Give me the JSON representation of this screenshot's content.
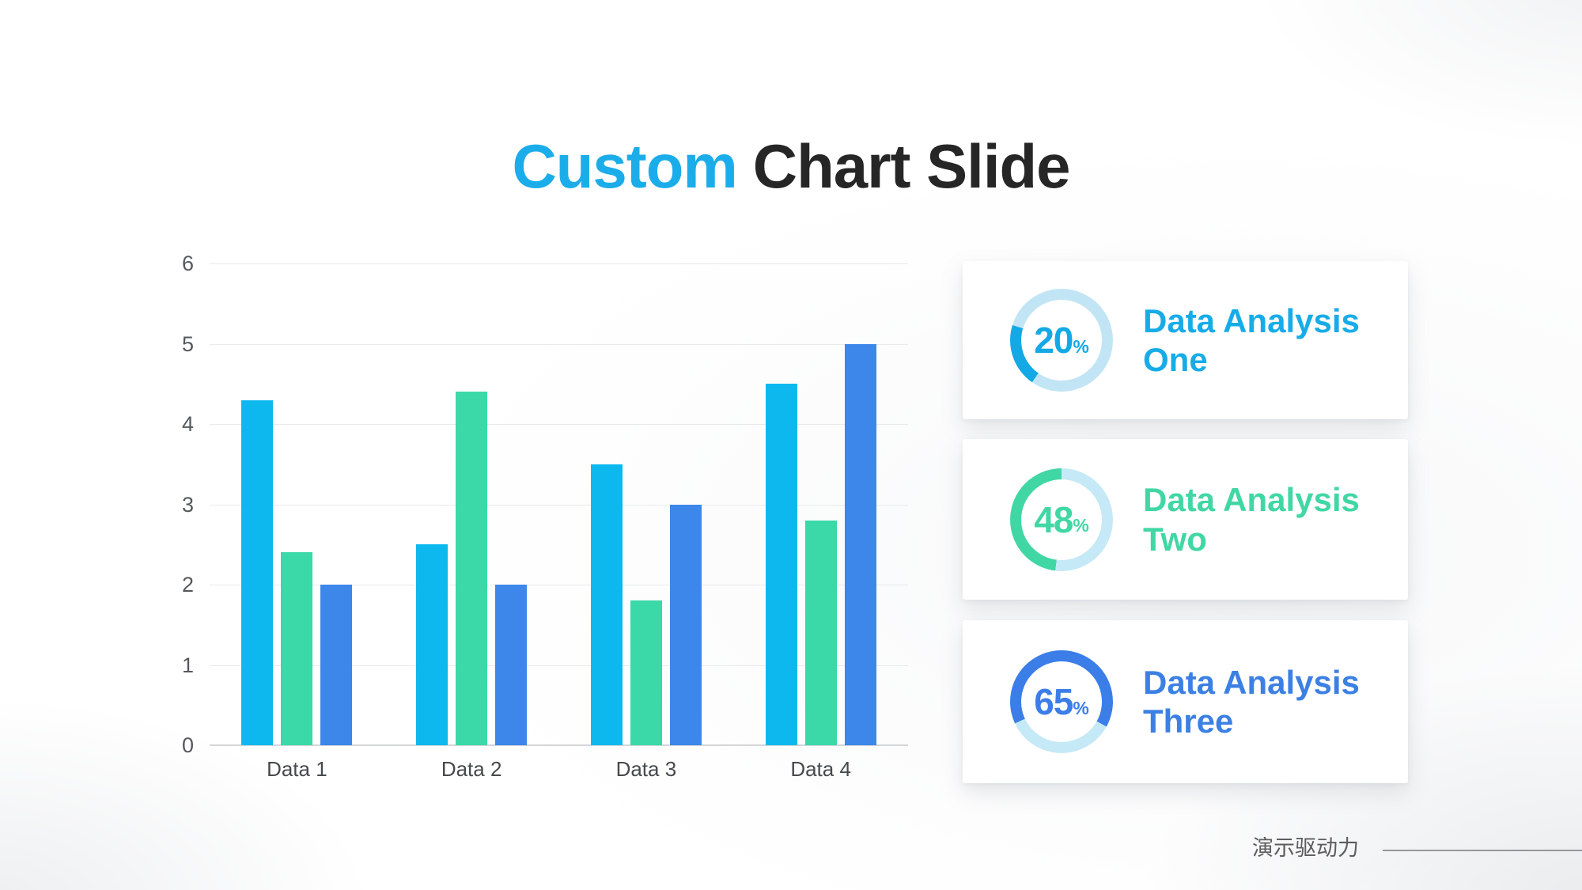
{
  "title": {
    "accent": "Custom",
    "rest": "Chart Slide"
  },
  "chart_data": [
    {
      "type": "bar",
      "title": "",
      "xlabel": "",
      "ylabel": "",
      "categories": [
        "Data 1",
        "Data 2",
        "Data 3",
        "Data 4"
      ],
      "series": [
        {
          "name": "series-cyan",
          "color": "#0db8ef",
          "values": [
            4.3,
            2.5,
            3.5,
            4.5
          ]
        },
        {
          "name": "series-green",
          "color": "#3bd8a8",
          "values": [
            2.4,
            4.4,
            1.8,
            2.8
          ]
        },
        {
          "name": "series-blue",
          "color": "#3d87ea",
          "values": [
            2.0,
            2.0,
            3.0,
            5.0
          ]
        }
      ],
      "ylim": [
        0,
        6
      ],
      "yticks": [
        0,
        1,
        2,
        3,
        4,
        5,
        6
      ],
      "grid": true,
      "legend": "none"
    },
    {
      "type": "pie",
      "subtype": "donut-gauges",
      "items": [
        {
          "label": "Data Analysis One",
          "percent": 20
        },
        {
          "label": "Data Analysis Two",
          "percent": 48
        },
        {
          "label": "Data Analysis Three",
          "percent": 65
        }
      ]
    }
  ],
  "cards": [
    {
      "percent_label": "20",
      "percent_symbol": "%",
      "title_line1": "Data Analysis",
      "title_line2": "One",
      "accent_color": "#14a9e4",
      "text_color": "#17ace8",
      "track_color": "#c2e5f5",
      "arc_start_deg": 215,
      "percent": 20
    },
    {
      "percent_label": "48",
      "percent_symbol": "%",
      "title_line1": "Data Analysis",
      "title_line2": "Two",
      "accent_color": "#41d7a4",
      "text_color": "#41d7a4",
      "track_color": "#c5e9f6",
      "arc_start_deg": 187,
      "percent": 48
    },
    {
      "percent_label": "65",
      "percent_symbol": "%",
      "title_line1": "Data Analysis",
      "title_line2": "Three",
      "accent_color": "#3b7ee8",
      "text_color": "#3c80e4",
      "track_color": "#c5e9f6",
      "arc_start_deg": 245,
      "percent": 65
    }
  ],
  "footer": {
    "brand": "演示驱动力"
  }
}
